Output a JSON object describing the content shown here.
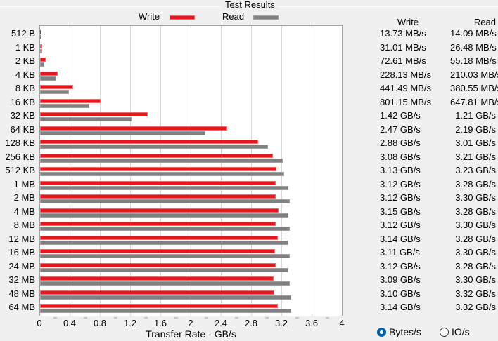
{
  "title": "Test Results",
  "legend": {
    "write_label": "Write",
    "read_label": "Read",
    "write_color": "#e8141e",
    "read_color": "#808080"
  },
  "table": {
    "write_header": "Write",
    "read_header": "Read",
    "rows": [
      {
        "write": "13.73 MB/s",
        "read": "14.09 MB/s"
      },
      {
        "write": "31.01 MB/s",
        "read": "26.48 MB/s"
      },
      {
        "write": "72.61 MB/s",
        "read": "55.18 MB/s"
      },
      {
        "write": "228.13 MB/s",
        "read": "210.03 MB/s"
      },
      {
        "write": "441.49 MB/s",
        "read": "380.55 MB/s"
      },
      {
        "write": "801.15 MB/s",
        "read": "647.81 MB/s"
      },
      {
        "write": "1.42 GB/s",
        "read": "1.21 GB/s"
      },
      {
        "write": "2.47 GB/s",
        "read": "2.19 GB/s"
      },
      {
        "write": "2.88 GB/s",
        "read": "3.01 GB/s"
      },
      {
        "write": "3.08 GB/s",
        "read": "3.21 GB/s"
      },
      {
        "write": "3.13 GB/s",
        "read": "3.23 GB/s"
      },
      {
        "write": "3.12 GB/s",
        "read": "3.28 GB/s"
      },
      {
        "write": "3.12 GB/s",
        "read": "3.30 GB/s"
      },
      {
        "write": "3.15 GB/s",
        "read": "3.28 GB/s"
      },
      {
        "write": "3.12 GB/s",
        "read": "3.30 GB/s"
      },
      {
        "write": "3.14 GB/s",
        "read": "3.28 GB/s"
      },
      {
        "write": "3.11 GB/s",
        "read": "3.30 GB/s"
      },
      {
        "write": "3.12 GB/s",
        "read": "3.28 GB/s"
      },
      {
        "write": "3.09 GB/s",
        "read": "3.30 GB/s"
      },
      {
        "write": "3.10 GB/s",
        "read": "3.32 GB/s"
      },
      {
        "write": "3.14 GB/s",
        "read": "3.32 GB/s"
      }
    ]
  },
  "radio": {
    "bytes_label": "Bytes/s",
    "io_label": "IO/s",
    "selected": "bytes"
  },
  "chart_data": {
    "type": "bar",
    "orientation": "horizontal",
    "title": "Test Results",
    "xlabel": "Transfer Rate - GB/s",
    "ylabel": "",
    "xlim": [
      0,
      4
    ],
    "xticks": [
      "0",
      "0.4",
      "0.8",
      "1.2",
      "1.6",
      "2",
      "2.4",
      "2.8",
      "3.2",
      "3.6",
      "4"
    ],
    "grid": true,
    "legend_position": "top",
    "categories": [
      "512 B",
      "1 KB",
      "2 KB",
      "4 KB",
      "8 KB",
      "16 KB",
      "32 KB",
      "64 KB",
      "128 KB",
      "256 KB",
      "512 KB",
      "1 MB",
      "2 MB",
      "4 MB",
      "8 MB",
      "12 MB",
      "16 MB",
      "24 MB",
      "32 MB",
      "48 MB",
      "64 MB"
    ],
    "series": [
      {
        "name": "Write",
        "color": "#e8141e",
        "values": [
          0.01373,
          0.03101,
          0.07261,
          0.22813,
          0.44149,
          0.80115,
          1.42,
          2.47,
          2.88,
          3.08,
          3.13,
          3.12,
          3.12,
          3.15,
          3.12,
          3.14,
          3.11,
          3.12,
          3.09,
          3.1,
          3.14
        ]
      },
      {
        "name": "Read",
        "color": "#808080",
        "values": [
          0.01409,
          0.02648,
          0.05518,
          0.21003,
          0.38055,
          0.64781,
          1.21,
          2.19,
          3.01,
          3.21,
          3.23,
          3.28,
          3.3,
          3.28,
          3.3,
          3.28,
          3.3,
          3.28,
          3.3,
          3.32,
          3.32
        ]
      }
    ]
  }
}
